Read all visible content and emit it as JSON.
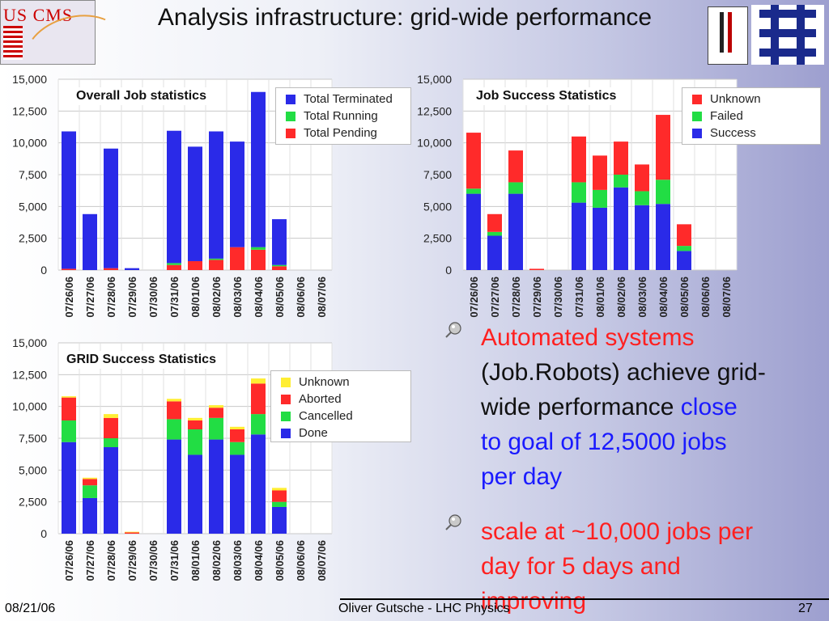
{
  "header": {
    "title": "Analysis infrastructure: grid-wide performance",
    "logo_left_text": "US CMS"
  },
  "chart_data": [
    {
      "type": "bar",
      "title": "Overall Job statistics",
      "categories": [
        "07/26/06",
        "07/27/06",
        "07/28/06",
        "07/29/06",
        "07/30/06",
        "07/31/06",
        "08/01/06",
        "08/02/06",
        "08/03/06",
        "08/04/06",
        "08/05/06",
        "08/06/06",
        "08/07/06"
      ],
      "ylim": [
        0,
        15000
      ],
      "yticks": [
        "15,000",
        "12,500",
        "10,000",
        "7,500",
        "5,000",
        "2,500",
        "0"
      ],
      "series": [
        {
          "name": "Total Pending",
          "color": "#ff2a2a",
          "values": [
            100,
            0,
            150,
            0,
            0,
            400,
            700,
            800,
            1800,
            1600,
            300,
            0,
            0
          ]
        },
        {
          "name": "Total Running",
          "color": "#22dd44",
          "values": [
            0,
            0,
            0,
            0,
            0,
            150,
            0,
            100,
            0,
            200,
            100,
            0,
            0
          ]
        },
        {
          "name": "Total Terminated",
          "color": "#2a2ae8",
          "values": [
            10800,
            4400,
            9400,
            150,
            0,
            10400,
            9000,
            10000,
            8300,
            12200,
            3600,
            0,
            0
          ]
        }
      ],
      "legend": [
        "Total Terminated",
        "Total Running",
        "Total Pending"
      ],
      "legend_position": "top-right"
    },
    {
      "type": "bar",
      "title": "Job Success Statistics",
      "categories": [
        "07/26/06",
        "07/27/06",
        "07/28/06",
        "07/29/06",
        "07/30/06",
        "07/31/06",
        "08/01/06",
        "08/02/06",
        "08/03/06",
        "08/04/06",
        "08/05/06",
        "08/06/06",
        "08/07/06"
      ],
      "ylim": [
        0,
        15000
      ],
      "yticks": [
        "15,000",
        "12,500",
        "10,000",
        "7,500",
        "5,000",
        "2,500",
        "0"
      ],
      "series": [
        {
          "name": "Success",
          "color": "#2a2ae8",
          "values": [
            6000,
            2700,
            6000,
            0,
            0,
            5300,
            4900,
            6500,
            5100,
            5200,
            1500,
            0,
            0
          ]
        },
        {
          "name": "Failed",
          "color": "#22dd44",
          "values": [
            400,
            300,
            900,
            0,
            0,
            1600,
            1400,
            1000,
            1100,
            1900,
            400,
            0,
            0
          ]
        },
        {
          "name": "Unknown",
          "color": "#ff2a2a",
          "values": [
            4400,
            1400,
            2500,
            100,
            0,
            3600,
            2700,
            2600,
            2100,
            5100,
            1700,
            0,
            0
          ]
        }
      ],
      "legend": [
        "Unknown",
        "Failed",
        "Success"
      ],
      "legend_position": "top-right"
    },
    {
      "type": "bar",
      "title": "GRID Success Statistics",
      "categories": [
        "07/26/06",
        "07/27/06",
        "07/28/06",
        "07/29/06",
        "07/30/06",
        "07/31/06",
        "08/01/06",
        "08/02/06",
        "08/03/06",
        "08/04/06",
        "08/05/06",
        "08/06/06",
        "08/07/06"
      ],
      "ylim": [
        0,
        15000
      ],
      "yticks": [
        "15,000",
        "12,500",
        "10,000",
        "7,500",
        "5,000",
        "2,500",
        "0"
      ],
      "series": [
        {
          "name": "Done",
          "color": "#2a2ae8",
          "values": [
            7200,
            2800,
            6800,
            0,
            0,
            7400,
            6200,
            7400,
            6200,
            7800,
            2100,
            0,
            0
          ]
        },
        {
          "name": "Cancelled",
          "color": "#22dd44",
          "values": [
            1700,
            1000,
            700,
            0,
            0,
            1600,
            2000,
            1700,
            1000,
            1600,
            400,
            0,
            0
          ]
        },
        {
          "name": "Aborted",
          "color": "#ff2a2a",
          "values": [
            1800,
            500,
            1600,
            100,
            0,
            1400,
            700,
            800,
            1000,
            2400,
            900,
            0,
            0
          ]
        },
        {
          "name": "Unknown",
          "color": "#ffee33",
          "values": [
            100,
            100,
            300,
            50,
            0,
            200,
            200,
            200,
            200,
            400,
            200,
            0,
            0
          ]
        }
      ],
      "legend": [
        "Unknown",
        "Aborted",
        "Cancelled",
        "Done"
      ],
      "legend_position": "top-right"
    }
  ],
  "bullets": [
    {
      "lines": [
        {
          "segments": [
            {
              "text": "Automated systems",
              "color": "#ff2020"
            }
          ]
        },
        {
          "segments": [
            {
              "text": "(Job.Robots) achieve grid-",
              "color": "#111111"
            }
          ]
        },
        {
          "segments": [
            {
              "text": "wide performance ",
              "color": "#111111"
            },
            {
              "text": "close",
              "color": "#1a1aff"
            }
          ]
        },
        {
          "segments": [
            {
              "text": "to goal of 12,5000 jobs",
              "color": "#1a1aff"
            }
          ]
        },
        {
          "segments": [
            {
              "text": "per day",
              "color": "#1a1aff"
            }
          ]
        }
      ]
    },
    {
      "lines": [
        {
          "segments": [
            {
              "text": "scale at ~10,000 jobs per",
              "color": "#ff2020"
            }
          ]
        },
        {
          "segments": [
            {
              "text": "day for 5 days and",
              "color": "#ff2020"
            }
          ]
        },
        {
          "segments": [
            {
              "text": "improving",
              "color": "#ff2020"
            }
          ]
        }
      ]
    }
  ],
  "footer": {
    "date": "08/21/06",
    "center": "Oliver Gutsche - LHC Physics",
    "page": "27"
  }
}
